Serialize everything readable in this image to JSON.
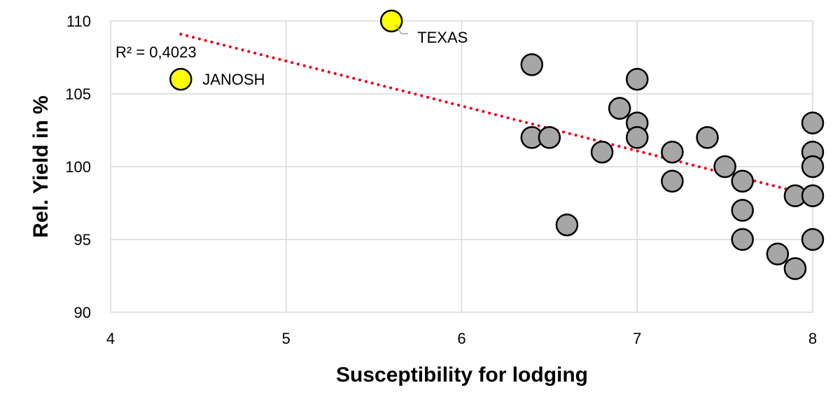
{
  "chart_data": {
    "type": "scatter",
    "xlabel": "Susceptibility for lodging",
    "ylabel": "Rel. Yield in %",
    "xlim": [
      4,
      8
    ],
    "ylim": [
      90,
      110
    ],
    "xticks": [
      "4",
      "5",
      "6",
      "7",
      "8"
    ],
    "yticks": [
      "90",
      "95",
      "100",
      "105",
      "110"
    ],
    "grid": true,
    "colors": {
      "regular": "#a6a6a6",
      "highlight": "#ffff00",
      "outline": "#000000",
      "trendline": "#e8001c",
      "grid": "#d9d9d9"
    },
    "points": [
      {
        "x": 6.4,
        "y": 107
      },
      {
        "x": 6.4,
        "y": 102
      },
      {
        "x": 6.5,
        "y": 102
      },
      {
        "x": 6.6,
        "y": 96
      },
      {
        "x": 6.8,
        "y": 101
      },
      {
        "x": 6.9,
        "y": 104
      },
      {
        "x": 7.0,
        "y": 106
      },
      {
        "x": 7.0,
        "y": 103
      },
      {
        "x": 7.0,
        "y": 102
      },
      {
        "x": 7.2,
        "y": 101
      },
      {
        "x": 7.2,
        "y": 99
      },
      {
        "x": 7.4,
        "y": 102
      },
      {
        "x": 7.5,
        "y": 100
      },
      {
        "x": 7.6,
        "y": 99
      },
      {
        "x": 7.6,
        "y": 97
      },
      {
        "x": 7.6,
        "y": 95
      },
      {
        "x": 7.8,
        "y": 94
      },
      {
        "x": 7.9,
        "y": 98
      },
      {
        "x": 7.9,
        "y": 93
      },
      {
        "x": 8.0,
        "y": 103
      },
      {
        "x": 8.0,
        "y": 101
      },
      {
        "x": 8.0,
        "y": 100
      },
      {
        "x": 8.0,
        "y": 98
      },
      {
        "x": 8.0,
        "y": 95
      }
    ],
    "highlighted": [
      {
        "name": "JANOSH",
        "x": 4.4,
        "y": 106
      },
      {
        "name": "TEXAS",
        "x": 5.6,
        "y": 110
      }
    ],
    "trendline": {
      "style": "dotted",
      "x": [
        4.4,
        8.0
      ],
      "y": [
        109.1,
        98.0
      ]
    },
    "annotations": [
      {
        "text": "R² = 0,4023"
      }
    ]
  }
}
